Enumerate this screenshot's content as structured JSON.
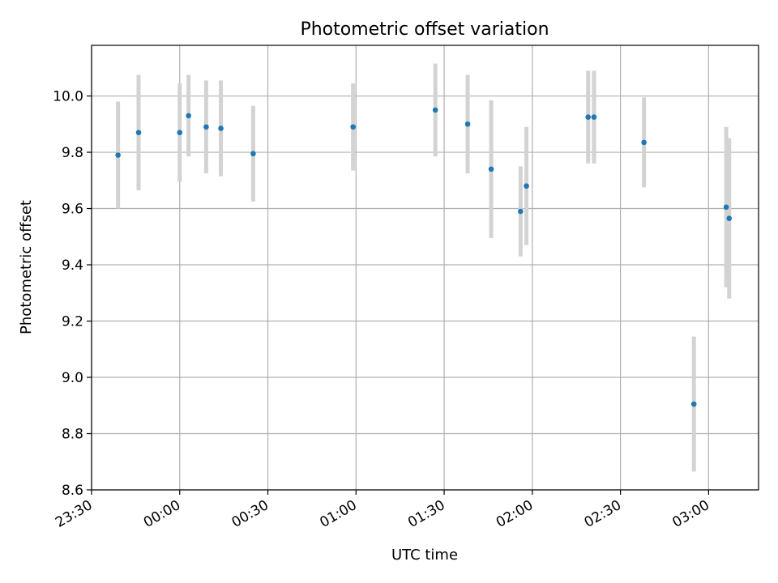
{
  "chart_data": {
    "type": "scatter",
    "title": "Photometric offset variation",
    "xlabel": "UTC time",
    "ylabel": "Photometric offset",
    "x_ticks": [
      "23:30",
      "00:00",
      "00:30",
      "01:00",
      "01:30",
      "02:00",
      "02:30",
      "03:00"
    ],
    "y_ticks": [
      "8.6",
      "8.8",
      "9.0",
      "9.2",
      "9.4",
      "9.6",
      "9.8",
      "10.0"
    ],
    "xlim": [
      "23:30",
      "03:17"
    ],
    "ylim": [
      8.6,
      10.18
    ],
    "grid": true,
    "series": [
      {
        "marker_color": "#1f77b4",
        "errorbar_color": "#d3d3d3",
        "points": [
          {
            "x": "23:39",
            "y": 9.79,
            "err": 0.19
          },
          {
            "x": "23:46",
            "y": 9.87,
            "err": 0.205
          },
          {
            "x": "00:00",
            "y": 9.87,
            "err": 0.175
          },
          {
            "x": "00:03",
            "y": 9.93,
            "err": 0.145
          },
          {
            "x": "00:09",
            "y": 9.89,
            "err": 0.165
          },
          {
            "x": "00:14",
            "y": 9.885,
            "err": 0.17
          },
          {
            "x": "00:25",
            "y": 9.795,
            "err": 0.17
          },
          {
            "x": "00:59",
            "y": 9.89,
            "err": 0.155
          },
          {
            "x": "01:27",
            "y": 9.95,
            "err": 0.165
          },
          {
            "x": "01:38",
            "y": 9.9,
            "err": 0.175
          },
          {
            "x": "01:46",
            "y": 9.74,
            "err": 0.245
          },
          {
            "x": "01:56",
            "y": 9.59,
            "err": 0.16
          },
          {
            "x": "01:58",
            "y": 9.68,
            "err": 0.21
          },
          {
            "x": "02:19",
            "y": 9.925,
            "err": 0.165
          },
          {
            "x": "02:21",
            "y": 9.925,
            "err": 0.165
          },
          {
            "x": "02:38",
            "y": 9.835,
            "err": 0.16
          },
          {
            "x": "02:55",
            "y": 8.905,
            "err": 0.24
          },
          {
            "x": "03:06",
            "y": 9.605,
            "err": 0.285
          },
          {
            "x": "03:07",
            "y": 9.565,
            "err": 0.285
          }
        ]
      }
    ]
  }
}
